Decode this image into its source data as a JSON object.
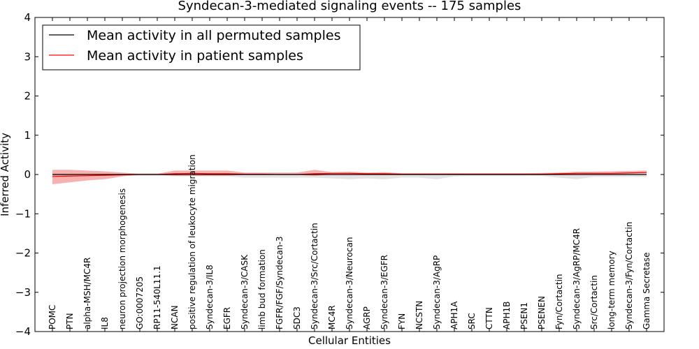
{
  "chart_data": {
    "type": "line",
    "title": "Syndecan-3-mediated signaling events -- 175 samples",
    "xlabel": "Cellular Entities",
    "ylabel": "Inferred Activity",
    "ylim": [
      -4,
      4
    ],
    "yticks": [
      -4,
      -3,
      -2,
      -1,
      0,
      1,
      2,
      3,
      4
    ],
    "ytick_labels": [
      "−4",
      "−3",
      "−2",
      "−1",
      "0",
      "1",
      "2",
      "3",
      "4"
    ],
    "legend_position": "upper-left",
    "categories": [
      "POMC",
      "PTN",
      "alpha-MSH/MC4R",
      "IL8",
      "neuron projection morphogenesis",
      "GO:0007205",
      "RP11-540L11.1",
      "NCAN",
      "positive regulation of leukocyte migration",
      "Syndecan-3/IL8",
      "EGFR",
      "Syndecan-3/CASK",
      "limb bud formation",
      "FGFR/FGF/Syndecan-3",
      "SDC3",
      "Syndecan-3/Src/Cortactin",
      "MC4R",
      "Syndecan-3/Neurocan",
      "AGRP",
      "Syndecan-3/EGFR",
      "FYN",
      "NCSTN",
      "Syndecan-3/AgRP",
      "APH1A",
      "SRC",
      "CTTN",
      "APH1B",
      "PSEN1",
      "PSENEN",
      "Fyn/Cortactin",
      "Syndecan-3/AgRP/MC4R",
      "Src/Cortactin",
      "long-term memory",
      "Syndecan-3/Fyn/Cortactin",
      "Gamma Secretase"
    ],
    "series": [
      {
        "name": "Mean activity in all permuted samples",
        "color": "#000000",
        "values": [
          0.0,
          0.0,
          0.0,
          0.0,
          0.0,
          0.0,
          0.0,
          0.0,
          0.0,
          0.0,
          0.0,
          0.0,
          0.0,
          0.0,
          0.0,
          0.0,
          0.0,
          0.0,
          0.0,
          0.0,
          0.0,
          0.0,
          0.0,
          0.0,
          0.0,
          0.0,
          0.0,
          0.0,
          0.0,
          0.0,
          0.0,
          0.0,
          0.0,
          0.0,
          0.0
        ],
        "band_lower": [
          -0.03,
          -0.03,
          -0.03,
          -0.03,
          -0.03,
          -0.03,
          -0.03,
          -0.05,
          -0.05,
          -0.05,
          -0.05,
          -0.08,
          -0.08,
          -0.08,
          -0.08,
          -0.08,
          -0.1,
          -0.12,
          -0.1,
          -0.12,
          -0.08,
          -0.08,
          -0.12,
          -0.05,
          -0.04,
          -0.04,
          -0.04,
          -0.04,
          -0.04,
          -0.08,
          -0.12,
          -0.06,
          -0.06,
          -0.06,
          -0.06
        ],
        "band_upper": [
          0.03,
          0.03,
          0.03,
          0.03,
          0.03,
          0.03,
          0.03,
          0.04,
          0.04,
          0.04,
          0.04,
          0.04,
          0.04,
          0.04,
          0.04,
          0.04,
          0.04,
          0.04,
          0.04,
          0.04,
          0.04,
          0.04,
          0.04,
          0.04,
          0.03,
          0.03,
          0.03,
          0.03,
          0.03,
          0.04,
          0.04,
          0.04,
          0.04,
          0.04,
          0.04
        ],
        "band_color": "#b0b0b0"
      },
      {
        "name": "Mean activity in patient samples",
        "color": "#ff0000",
        "values": [
          -0.05,
          -0.04,
          -0.03,
          -0.02,
          -0.01,
          0.0,
          0.0,
          0.02,
          0.03,
          0.02,
          0.02,
          0.01,
          0.01,
          0.0,
          0.0,
          0.02,
          0.03,
          0.03,
          0.02,
          0.02,
          0.01,
          0.01,
          0.01,
          0.01,
          0.01,
          0.01,
          0.01,
          0.01,
          0.01,
          0.02,
          0.03,
          0.03,
          0.03,
          0.04,
          0.05
        ],
        "band_lower": [
          -0.25,
          -0.2,
          -0.15,
          -0.12,
          -0.05,
          -0.01,
          -0.01,
          -0.03,
          -0.03,
          -0.03,
          -0.03,
          -0.01,
          -0.01,
          -0.01,
          -0.01,
          -0.04,
          0.0,
          0.0,
          0.0,
          0.0,
          0.0,
          0.0,
          0.0,
          0.0,
          0.0,
          0.0,
          0.0,
          0.0,
          0.0,
          0.0,
          0.01,
          0.01,
          0.01,
          0.02,
          0.03
        ],
        "band_upper": [
          0.12,
          0.12,
          0.1,
          0.08,
          0.05,
          0.02,
          0.02,
          0.1,
          0.1,
          0.1,
          0.1,
          0.05,
          0.05,
          0.05,
          0.05,
          0.12,
          0.06,
          0.07,
          0.05,
          0.06,
          0.03,
          0.03,
          0.03,
          0.03,
          0.03,
          0.03,
          0.03,
          0.03,
          0.04,
          0.05,
          0.07,
          0.07,
          0.08,
          0.09,
          0.1
        ],
        "band_color": "#f7a3a3"
      }
    ]
  }
}
